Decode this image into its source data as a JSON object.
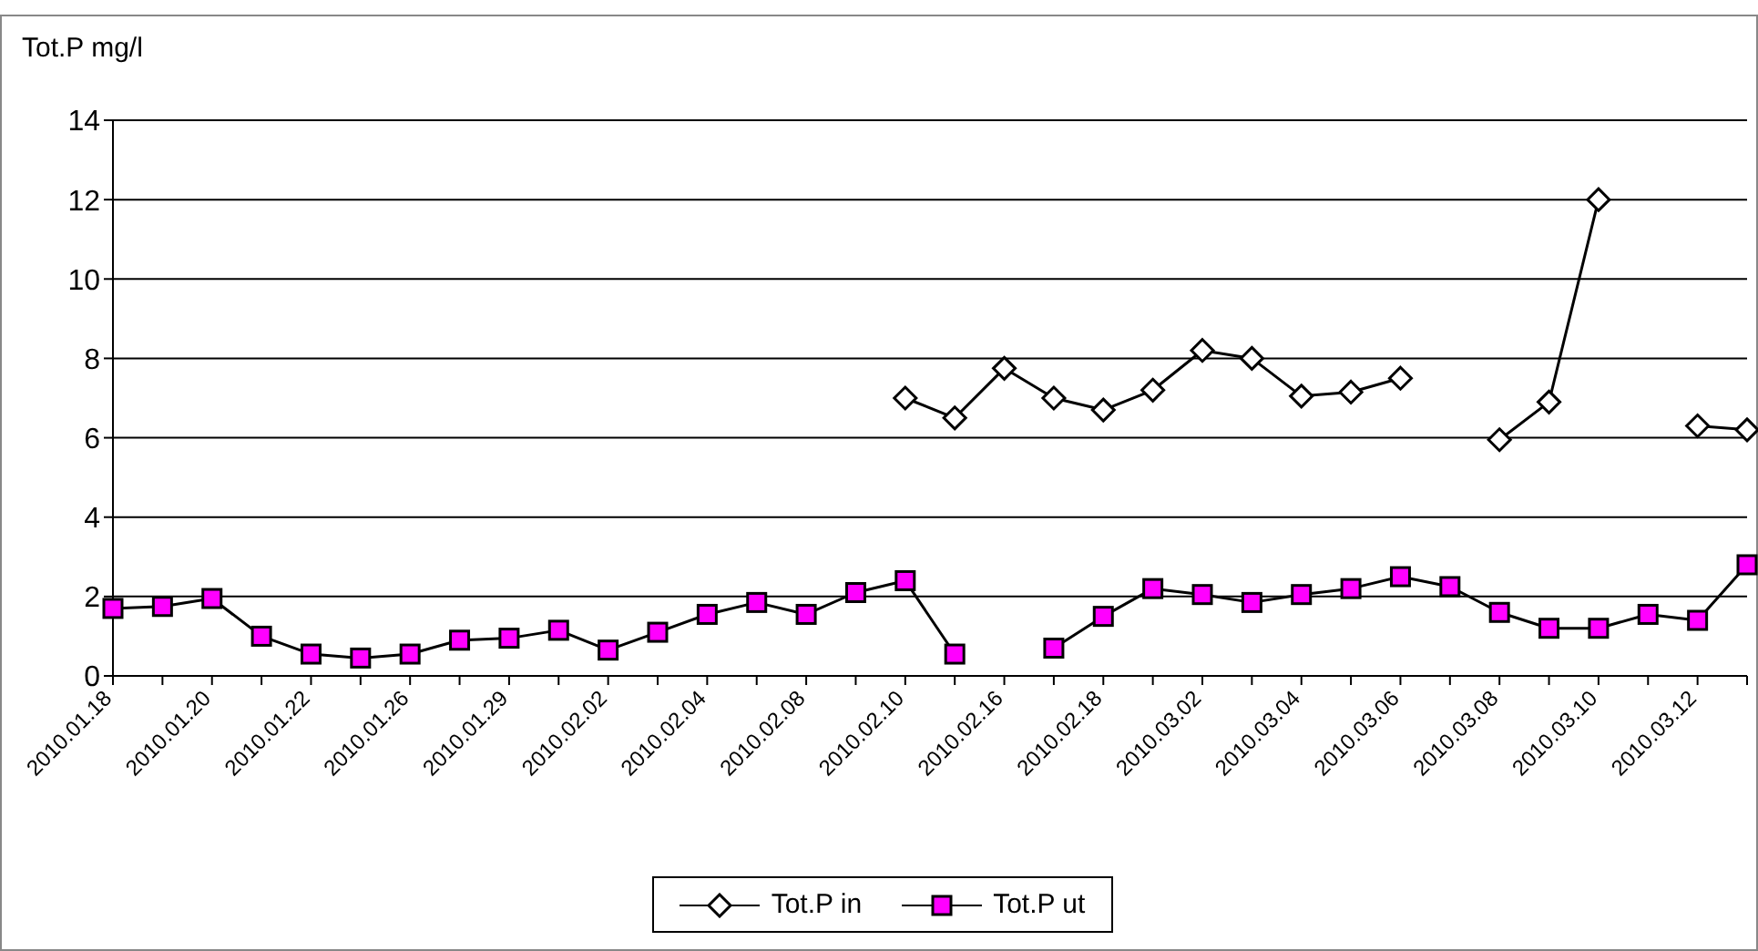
{
  "chart_data": {
    "type": "line",
    "ylabel": "Tot.P mg/l",
    "categories": [
      "2010.01.18",
      null,
      "2010.01.20",
      null,
      "2010.01.22",
      null,
      "2010.01.26",
      null,
      "2010.01.29",
      null,
      "2010.02.02",
      null,
      "2010.02.04",
      null,
      "2010.02.08",
      null,
      "2010.02.10",
      null,
      "2010.02.16",
      null,
      "2010.02.18",
      null,
      "2010.03.02",
      null,
      "2010.03.04",
      null,
      "2010.03.06",
      null,
      "2010.03.08",
      null,
      "2010.03.10",
      null,
      "2010.03.12",
      null
    ],
    "series": [
      {
        "name": "Tot.P in",
        "color": "#ffffff",
        "marker": "diamond",
        "values": [
          null,
          null,
          null,
          null,
          null,
          null,
          null,
          null,
          null,
          null,
          null,
          null,
          null,
          null,
          null,
          null,
          7.0,
          6.5,
          7.75,
          7.0,
          6.7,
          7.2,
          8.2,
          8.0,
          7.05,
          7.15,
          7.5,
          null,
          5.95,
          6.9,
          12.0,
          null,
          6.3,
          6.2
        ]
      },
      {
        "name": "Tot.P ut",
        "color": "#ff00ff",
        "marker": "square",
        "values": [
          1.7,
          1.75,
          1.95,
          1.0,
          0.55,
          0.45,
          0.55,
          0.9,
          0.95,
          1.15,
          0.65,
          1.1,
          1.55,
          1.85,
          1.55,
          2.1,
          2.4,
          0.55,
          null,
          0.7,
          1.5,
          2.2,
          2.05,
          1.85,
          2.05,
          2.2,
          2.5,
          2.25,
          1.6,
          1.2,
          1.2,
          1.55,
          1.4,
          2.8
        ]
      }
    ],
    "ylim": [
      0,
      14
    ],
    "yticks": [
      0,
      2,
      4,
      6,
      8,
      10,
      12,
      14
    ],
    "grid": "y",
    "legend": "bottom",
    "line_style": "solid"
  }
}
